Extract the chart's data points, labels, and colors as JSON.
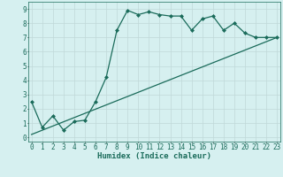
{
  "line1_x": [
    0,
    1,
    2,
    3,
    4,
    5,
    6,
    7,
    8,
    9,
    10,
    11,
    12,
    13,
    14,
    15,
    16,
    17,
    18,
    19,
    20,
    21,
    22,
    23
  ],
  "line1_y": [
    2.5,
    0.7,
    1.5,
    0.5,
    1.1,
    1.2,
    2.5,
    4.2,
    7.5,
    8.9,
    8.6,
    8.8,
    8.6,
    8.5,
    8.5,
    7.5,
    8.3,
    8.5,
    7.5,
    8.0,
    7.3,
    7.0,
    7.0,
    7.0
  ],
  "line2_x": [
    0,
    23
  ],
  "line2_y": [
    0.2,
    7.0
  ],
  "line_color": "#1a6b5a",
  "bg_color": "#d6f0f0",
  "grid_color": "#c0d8d8",
  "xlabel": "Humidex (Indice chaleur)",
  "xlim": [
    -0.3,
    23.3
  ],
  "ylim": [
    -0.3,
    9.5
  ],
  "xticks": [
    0,
    1,
    2,
    3,
    4,
    5,
    6,
    7,
    8,
    9,
    10,
    11,
    12,
    13,
    14,
    15,
    16,
    17,
    18,
    19,
    20,
    21,
    22,
    23
  ],
  "yticks": [
    0,
    1,
    2,
    3,
    4,
    5,
    6,
    7,
    8,
    9
  ],
  "tick_fontsize": 5.5,
  "xlabel_fontsize": 6.5,
  "marker": "D",
  "markersize": 2.0,
  "linewidth": 0.9
}
